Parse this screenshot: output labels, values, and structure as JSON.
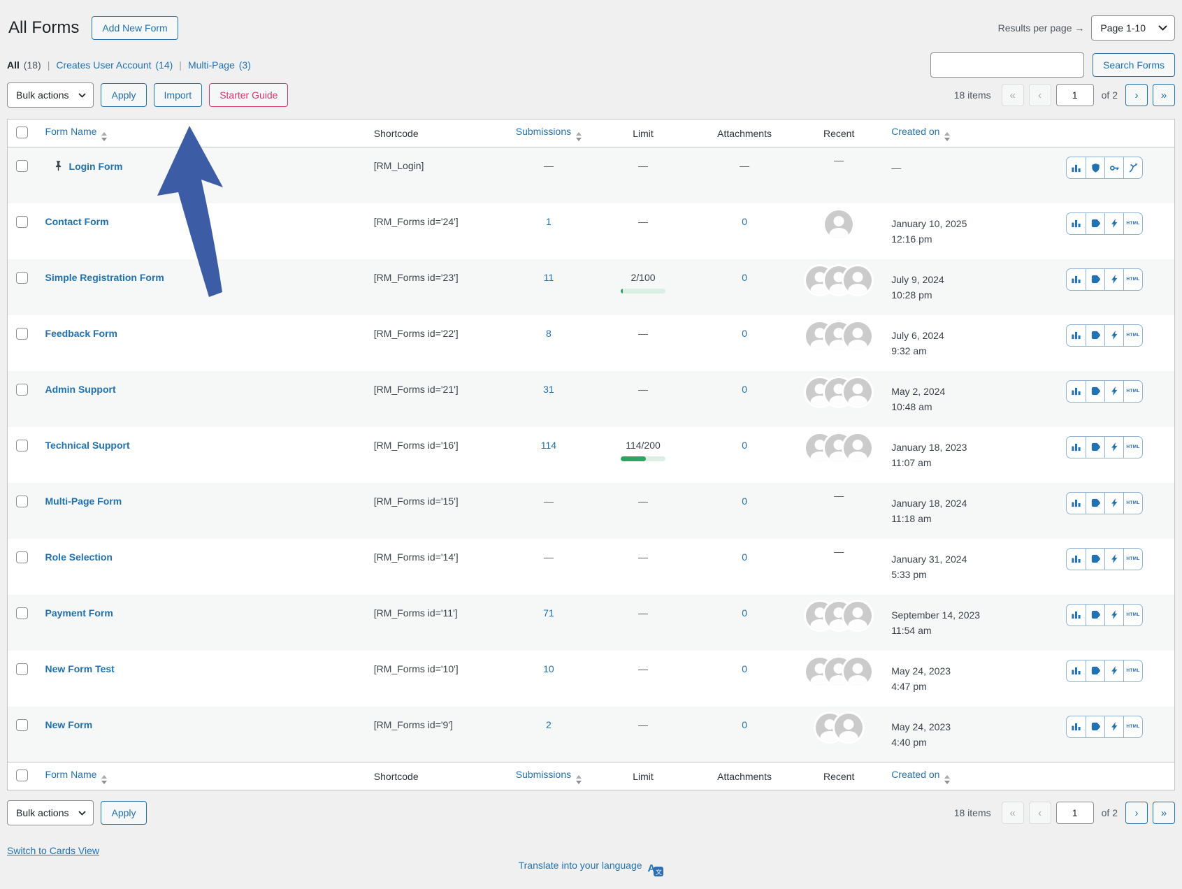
{
  "page": {
    "title": "All Forms",
    "add_new_label": "Add New Form",
    "results_per_page_label": "Results per page →",
    "page_select_value": "Page 1-10",
    "search_button": "Search Forms",
    "search_value": "",
    "bulk_actions_label": "Bulk actions",
    "apply_label": "Apply",
    "import_label": "Import",
    "starter_guide_label": "Starter Guide",
    "switch_view_label": "Switch to Cards View",
    "translate_label": "Translate into your language"
  },
  "filters": [
    {
      "label": "All",
      "count": "(18)",
      "active": true
    },
    {
      "label": "Creates User Account",
      "count": "(14)",
      "active": false
    },
    {
      "label": "Multi-Page",
      "count": "(3)",
      "active": false
    }
  ],
  "pagination": {
    "items": "18 items",
    "first": "«",
    "prev": "‹",
    "page": "1",
    "of": "of 2",
    "next": "›",
    "last": "»"
  },
  "table": {
    "columns": [
      {
        "label": "Form Name",
        "sortable": true,
        "link": true,
        "align": "left"
      },
      {
        "label": "Shortcode",
        "sortable": false,
        "link": false,
        "align": "left"
      },
      {
        "label": "Submissions",
        "sortable": true,
        "link": true,
        "align": "center"
      },
      {
        "label": "Limit",
        "sortable": false,
        "link": false,
        "align": "center"
      },
      {
        "label": "Attachments",
        "sortable": false,
        "link": false,
        "align": "center"
      },
      {
        "label": "Recent",
        "sortable": false,
        "link": false,
        "align": "center"
      },
      {
        "label": "Created on",
        "sortable": true,
        "link": true,
        "align": "left"
      }
    ],
    "rows": [
      {
        "name": "Login Form",
        "pinned": true,
        "shortcode": "[RM_Login]",
        "submissions": "—",
        "limit": "—",
        "attachments": "—",
        "recent": "—",
        "created": [
          "—"
        ],
        "actions": [
          "bar-chart",
          "shield",
          "key",
          "branch-arrow"
        ]
      },
      {
        "name": "Contact Form",
        "pinned": false,
        "shortcode": "[RM_Forms id='24']",
        "submissions": "1",
        "limit": "—",
        "attachments": "0",
        "recent": 1,
        "created": [
          "January 10, 2025",
          "12:16 pm"
        ],
        "actions": [
          "bar-chart",
          "tag",
          "bolt",
          "html"
        ]
      },
      {
        "name": "Simple Registration Form",
        "pinned": false,
        "shortcode": "[RM_Forms id='23']",
        "submissions": "11",
        "limit": {
          "label": "2/100",
          "pct": 2
        },
        "attachments": "0",
        "recent": 3,
        "created": [
          "July 9, 2024",
          "10:28 pm"
        ],
        "actions": [
          "bar-chart",
          "tag",
          "bolt",
          "html"
        ]
      },
      {
        "name": "Feedback Form",
        "pinned": false,
        "shortcode": "[RM_Forms id='22']",
        "submissions": "8",
        "limit": "—",
        "attachments": "0",
        "recent": 3,
        "created": [
          "July 6, 2024",
          "9:32 am"
        ],
        "actions": [
          "bar-chart",
          "tag",
          "bolt",
          "html"
        ]
      },
      {
        "name": "Admin Support",
        "pinned": false,
        "shortcode": "[RM_Forms id='21']",
        "submissions": "31",
        "limit": "—",
        "attachments": "0",
        "recent": 3,
        "created": [
          "May 2, 2024",
          "10:48 am"
        ],
        "actions": [
          "bar-chart",
          "tag",
          "bolt",
          "html"
        ]
      },
      {
        "name": "Technical Support",
        "pinned": false,
        "shortcode": "[RM_Forms id='16']",
        "submissions": "114",
        "limit": {
          "label": "114/200",
          "pct": 57
        },
        "attachments": "0",
        "recent": 3,
        "created": [
          "January 18, 2023",
          "11:07 am"
        ],
        "actions": [
          "bar-chart",
          "tag",
          "bolt",
          "html"
        ]
      },
      {
        "name": "Multi-Page Form",
        "pinned": false,
        "shortcode": "[RM_Forms id='15']",
        "submissions": "—",
        "limit": "—",
        "attachments": "0",
        "recent": "—",
        "created": [
          "January 18, 2024",
          "11:18 am"
        ],
        "actions": [
          "bar-chart",
          "tag",
          "bolt",
          "html"
        ]
      },
      {
        "name": "Role Selection",
        "pinned": false,
        "shortcode": "[RM_Forms id='14']",
        "submissions": "—",
        "limit": "—",
        "attachments": "0",
        "recent": "—",
        "created": [
          "January 31, 2024",
          "5:33 pm"
        ],
        "actions": [
          "bar-chart",
          "tag",
          "bolt",
          "html"
        ]
      },
      {
        "name": "Payment Form",
        "pinned": false,
        "shortcode": "[RM_Forms id='11']",
        "submissions": "71",
        "limit": "—",
        "attachments": "0",
        "recent": 3,
        "created": [
          "September 14, 2023",
          "11:54 am"
        ],
        "actions": [
          "bar-chart",
          "tag",
          "bolt",
          "html"
        ]
      },
      {
        "name": "New Form Test",
        "pinned": false,
        "shortcode": "[RM_Forms id='10']",
        "submissions": "10",
        "limit": "—",
        "attachments": "0",
        "recent": 3,
        "created": [
          "May 24, 2023",
          "4:47 pm"
        ],
        "actions": [
          "bar-chart",
          "tag",
          "bolt",
          "html"
        ]
      },
      {
        "name": "New Form",
        "pinned": false,
        "shortcode": "[RM_Forms id='9']",
        "submissions": "2",
        "limit": "—",
        "attachments": "0",
        "recent": 2,
        "created": [
          "May 24, 2023",
          "4:40 pm"
        ],
        "actions": [
          "bar-chart",
          "tag",
          "bolt",
          "html"
        ]
      }
    ]
  },
  "colors": {
    "page_bg": "#f0f0f1",
    "link_blue": "#2271b1",
    "text_dark": "#2c3338",
    "text_gray": "#50575e",
    "accent_pink": "#d9376e",
    "arrow_blue": "#3c5ca6",
    "border": "#c3c4c7",
    "row_stripe": "#f6f7f7",
    "input_border": "#8c8f94",
    "disabled_border": "#dcdcde",
    "disabled_text": "#a7aaad",
    "icon_border": "#8db3d6",
    "progress_green": "#2aa563",
    "progress_track": "#dcefe4",
    "avatar_gray": "#cbcbcb"
  }
}
